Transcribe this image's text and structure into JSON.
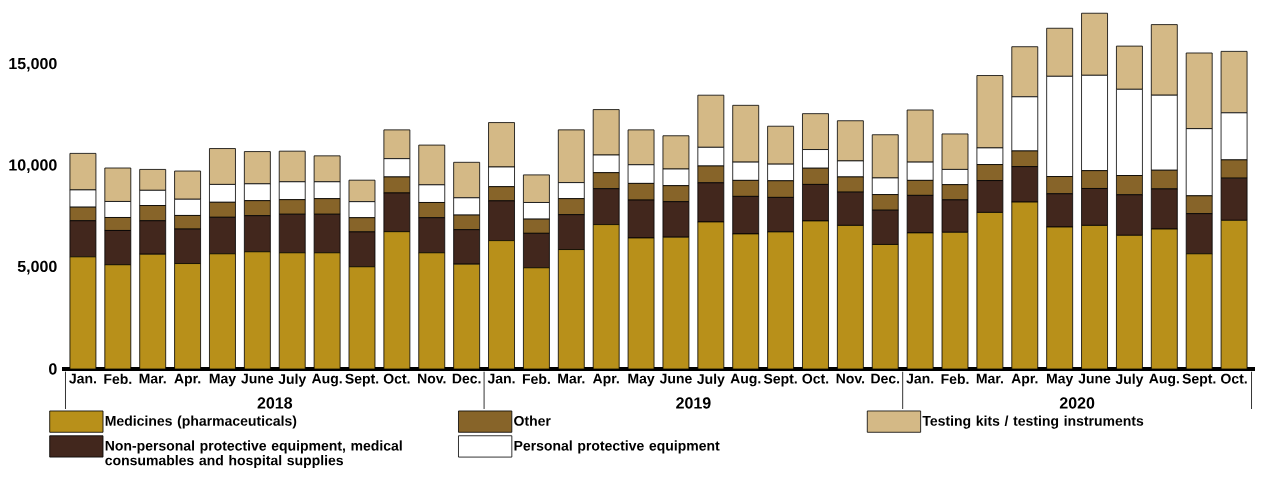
{
  "chart_data": {
    "type": "bar",
    "stacked": true,
    "legend": "bottom",
    "categories": [
      "Jan.",
      "Feb.",
      "Mar.",
      "Apr.",
      "May",
      "June",
      "July",
      "Aug.",
      "Sept.",
      "Oct.",
      "Nov.",
      "Dec.",
      "Jan.",
      "Feb.",
      "Mar.",
      "Apr.",
      "May",
      "June",
      "July",
      "Aug.",
      "Sept.",
      "Oct.",
      "Nov.",
      "Dec.",
      "Jan.",
      "Feb.",
      "Mar.",
      "Apr.",
      "May",
      "June",
      "July",
      "Aug.",
      "Sept.",
      "Oct."
    ],
    "ylim": [
      0,
      17700
    ],
    "yticks": [
      0,
      {
        "value": 5000,
        "label": "5,000"
      },
      {
        "value": 10000,
        "label": "10,000"
      },
      {
        "value": 15000,
        "label": "15,000"
      }
    ],
    "annotations": [
      "2018",
      "2019",
      "2020"
    ],
    "series": [
      {
        "name": "Medicines (pharmaceuticals)",
        "color": "#b8901a",
        "values": [
          5530,
          5140,
          5660,
          5200,
          5680,
          5780,
          5730,
          5730,
          5040,
          6770,
          5730,
          5170,
          6330,
          4990,
          5890,
          7120,
          6460,
          6500,
          7250,
          6660,
          6760,
          7300,
          7080,
          6140,
          6710,
          6740,
          7720,
          8230,
          7000,
          7080,
          6590,
          6900,
          5680,
          7330
        ]
      },
      {
        "name": "Non-personal protective equipment, medical consumables and hospital supplies",
        "color": "#42271d",
        "values": [
          1780,
          1690,
          1650,
          1700,
          1800,
          1780,
          1900,
          1900,
          1720,
          1910,
          1730,
          1700,
          1960,
          1700,
          1720,
          1770,
          1870,
          1750,
          1930,
          1850,
          1700,
          1800,
          1640,
          1690,
          1850,
          1600,
          1570,
          1750,
          1640,
          1820,
          2000,
          1980,
          1980,
          2080
        ]
      },
      {
        "name": "Other",
        "color": "#876429",
        "values": [
          670,
          640,
          750,
          670,
          740,
          740,
          720,
          770,
          700,
          790,
          750,
          720,
          700,
          700,
          790,
          790,
          820,
          790,
          830,
          790,
          820,
          800,
          750,
          770,
          740,
          750,
          790,
          770,
          850,
          880,
          950,
          920,
          880,
          900
        ]
      },
      {
        "name": "Personal protective equipment",
        "color": "#ffffff",
        "values": [
          850,
          790,
          750,
          800,
          880,
          830,
          880,
          830,
          790,
          900,
          870,
          850,
          970,
          820,
          790,
          870,
          920,
          820,
          920,
          900,
          820,
          920,
          790,
          820,
          900,
          750,
          820,
          2670,
          4940,
          4700,
          4250,
          3700,
          3310,
          2320
        ]
      },
      {
        "name": "Testing kits / testing instruments",
        "color": "#d4b986",
        "values": [
          1800,
          1650,
          1030,
          1390,
          1770,
          1590,
          1510,
          1280,
          1060,
          1420,
          1960,
          1750,
          2190,
          1360,
          2600,
          2240,
          1720,
          1640,
          2570,
          2800,
          1870,
          1770,
          1980,
          2130,
          2570,
          1750,
          3570,
          2470,
          2370,
          3060,
          2130,
          3480,
          3730,
          3030
        ]
      }
    ]
  }
}
